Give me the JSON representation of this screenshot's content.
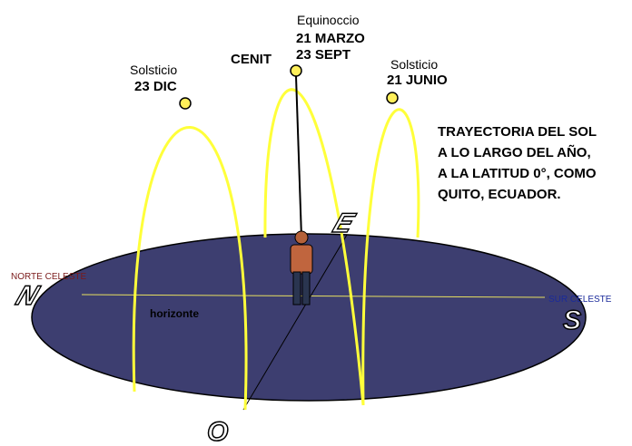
{
  "labels": {
    "equinox": [
      "Equinoccio",
      "21 MARZO",
      "23 SEPT"
    ],
    "zenith": "CENIT",
    "winter_solstice": [
      "Solsticio",
      "23 DIC"
    ],
    "summer_solstice": [
      "Solsticio",
      "21 JUNIO"
    ],
    "caption": [
      "TRAYECTORIA DEL SOL",
      "A LO LARGO DEL AÑO,",
      "A LA LATITUD 0°, COMO",
      "QUITO, ECUADOR."
    ],
    "north": "NORTE CELESTE",
    "south": "SUR CELESTE",
    "horizon": "horizonte"
  },
  "compass": {
    "north": "N",
    "east": "E",
    "south": "S",
    "west": "O"
  }
}
